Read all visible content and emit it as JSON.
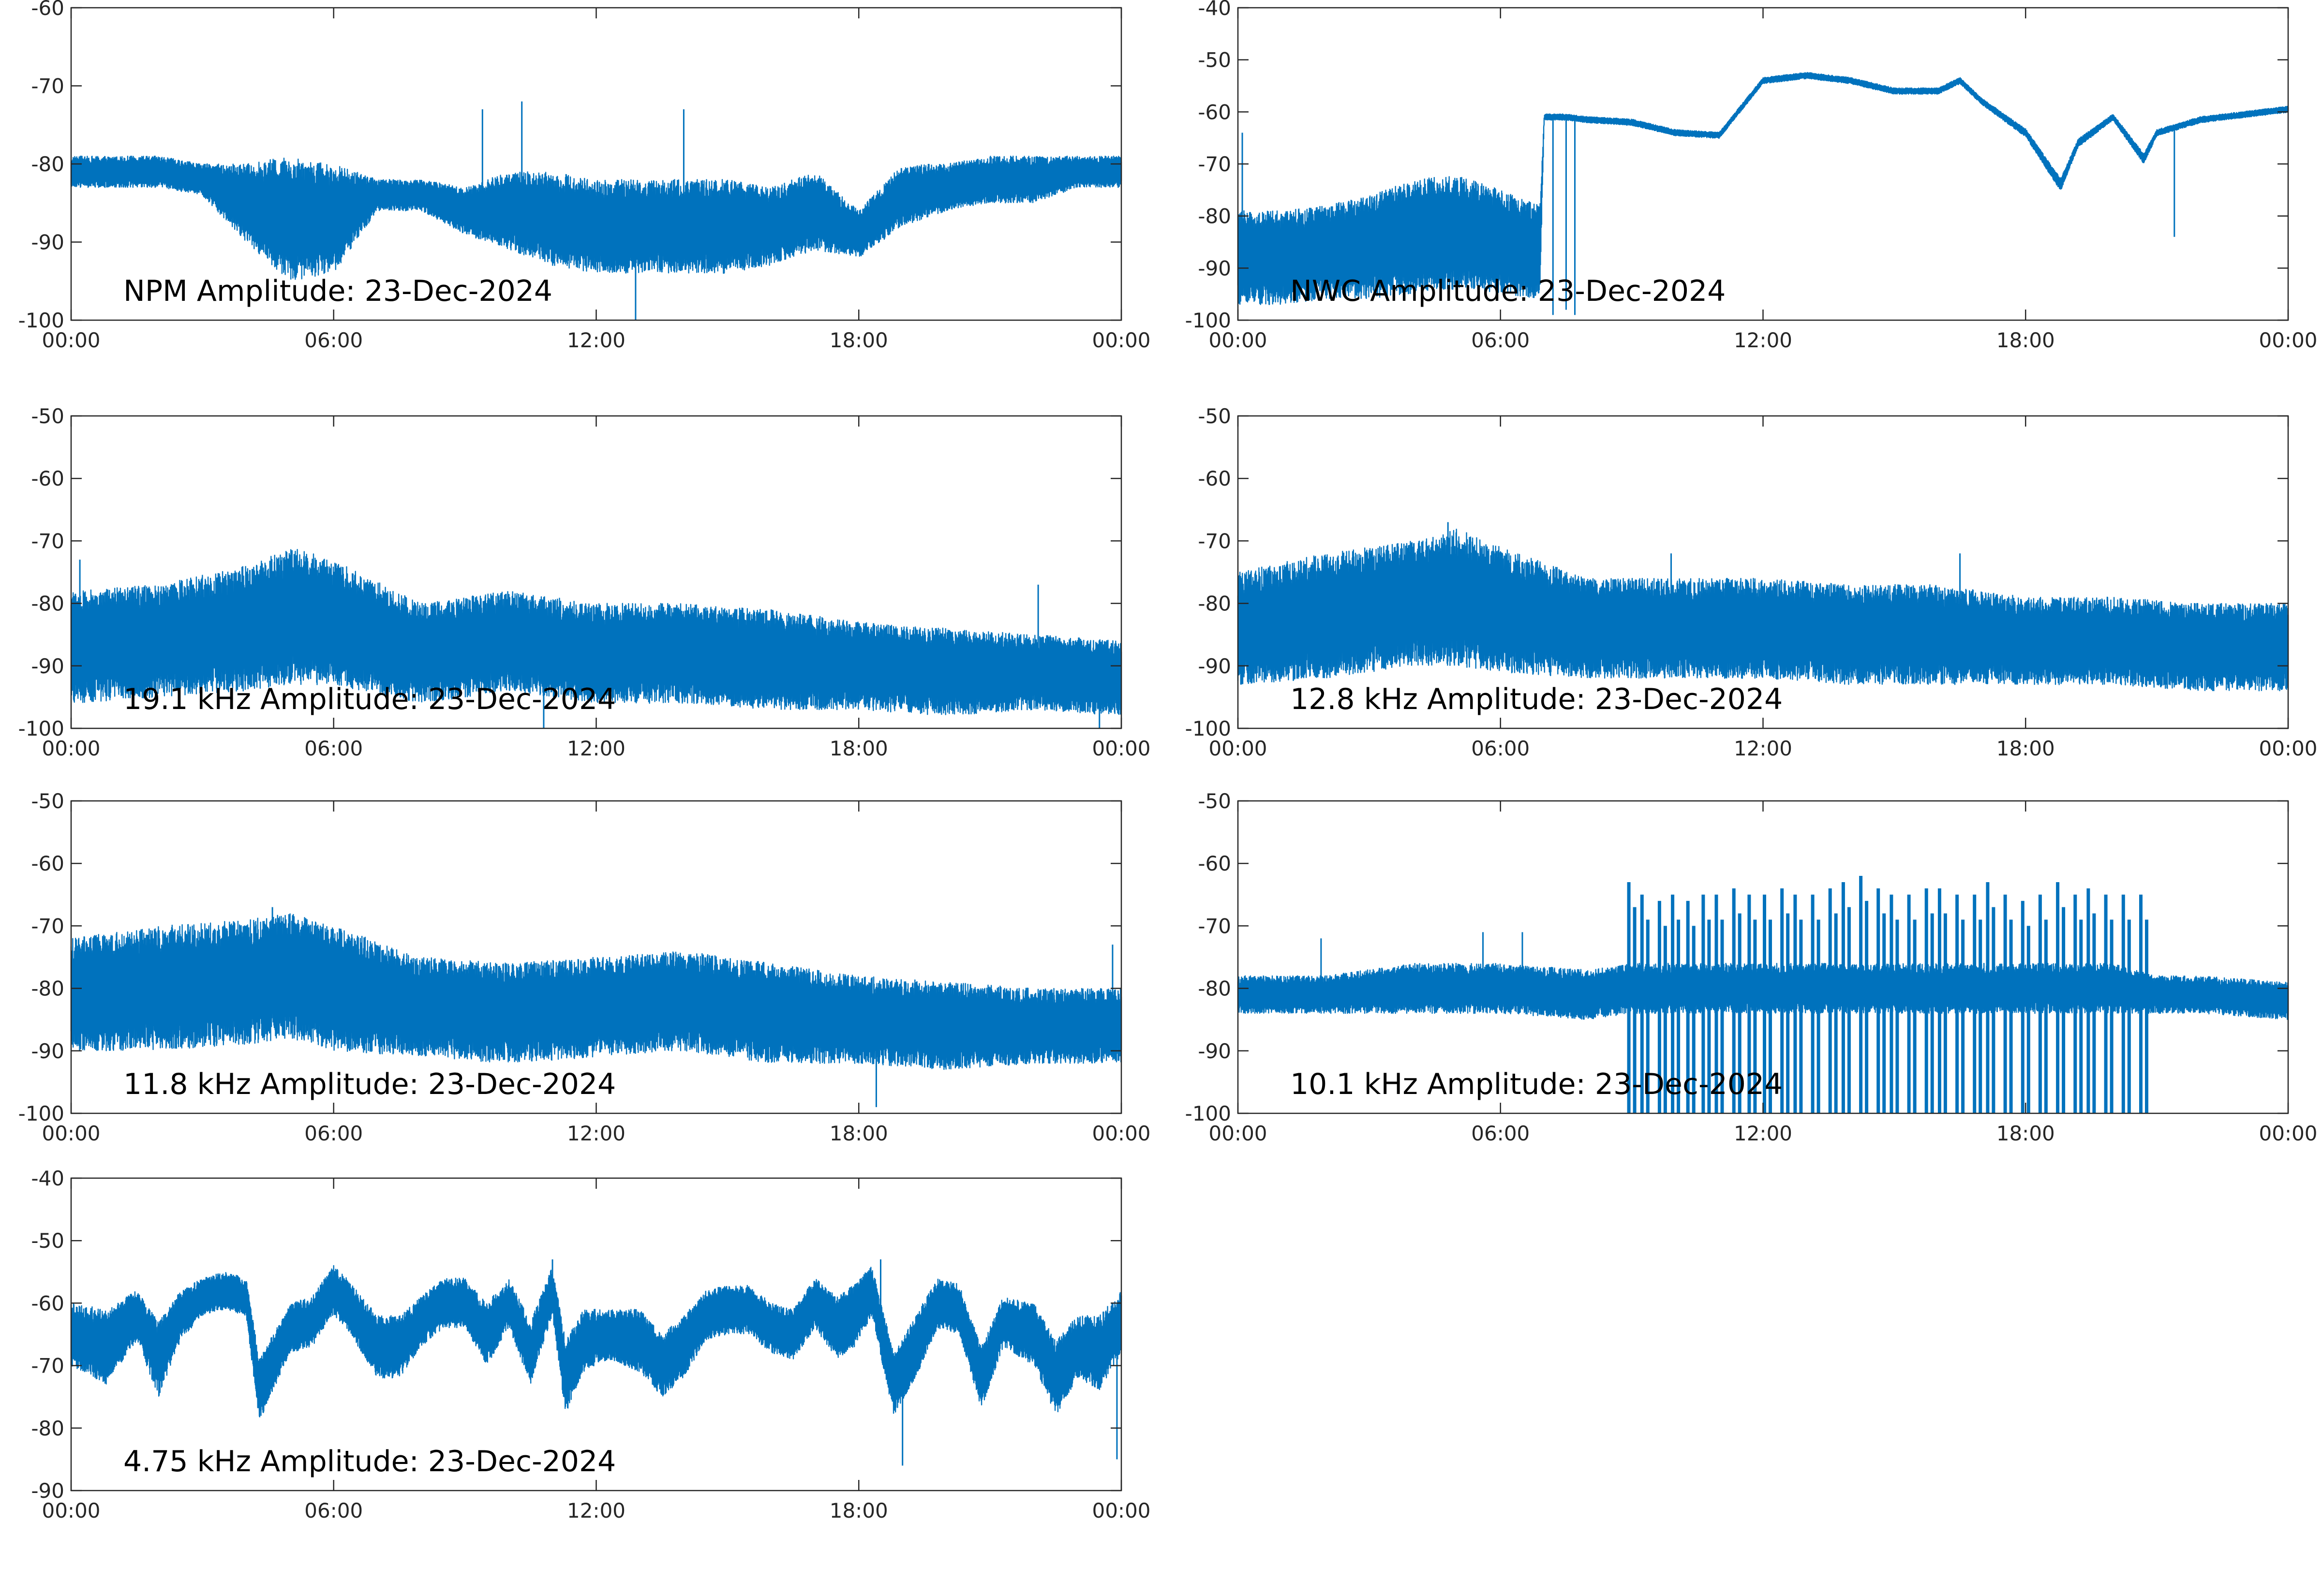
{
  "chart_data": [
    {
      "type": "line",
      "title": "NPM Amplitude: 23-Dec-2024",
      "xlabel": "",
      "ylabel": "",
      "x_ticks": [
        "00:00",
        "06:00",
        "12:00",
        "18:00",
        "00:00"
      ],
      "xlim_hours": [
        0,
        24
      ],
      "ylim": [
        -100,
        -60
      ],
      "y_ticks": [
        -60,
        -70,
        -80,
        -90,
        -100
      ],
      "series_color": "#0072BD",
      "grid": false,
      "envelope": {
        "hours": [
          0,
          1,
          2,
          3,
          4,
          5,
          6,
          7,
          8,
          9,
          10,
          11,
          12,
          13,
          14,
          15,
          16,
          17,
          18,
          19,
          20,
          21,
          22,
          23,
          24
        ],
        "center": [
          -81,
          -81,
          -81,
          -82,
          -85,
          -87,
          -87,
          -84,
          -84,
          -86,
          -86,
          -87,
          -88,
          -88,
          -88,
          -88,
          -88,
          -86,
          -89,
          -84,
          -83,
          -82,
          -82,
          -81,
          -81
        ],
        "spread": [
          2,
          2,
          2,
          2,
          5,
          8,
          7,
          2,
          2,
          3,
          5,
          6,
          6,
          6,
          6,
          6,
          5,
          5,
          3,
          4,
          3,
          3,
          3,
          2,
          2
        ]
      },
      "spikes": [
        {
          "hour": 9.4,
          "value": -73
        },
        {
          "hour": 10.3,
          "value": -72
        },
        {
          "hour": 14.0,
          "value": -73
        },
        {
          "hour": 12.9,
          "value": -100
        }
      ]
    },
    {
      "type": "line",
      "title": "NWC Amplitude: 23-Dec-2024",
      "xlabel": "",
      "ylabel": "",
      "x_ticks": [
        "00:00",
        "06:00",
        "12:00",
        "18:00",
        "00:00"
      ],
      "xlim_hours": [
        0,
        24
      ],
      "ylim": [
        -100,
        -40
      ],
      "y_ticks": [
        -40,
        -50,
        -60,
        -70,
        -80,
        -90,
        -100
      ],
      "series_color": "#0072BD",
      "grid": false,
      "envelope": {
        "hours": [
          0,
          0.1,
          1,
          2,
          3,
          4,
          5,
          6,
          6.9,
          7.0,
          7.5,
          8,
          9,
          10,
          11,
          12,
          13,
          14,
          15,
          16,
          16.5,
          17,
          18,
          18.8,
          19.2,
          20,
          20.7,
          21,
          22,
          23,
          24
        ],
        "center": [
          -88,
          -88,
          -88,
          -87,
          -86,
          -84,
          -83,
          -85,
          -87,
          -61,
          -61,
          -61.5,
          -62,
          -64,
          -64.5,
          -54,
          -53,
          -54,
          -56,
          -56,
          -54,
          -58,
          -64,
          -74,
          -66,
          -61,
          -69,
          -64,
          -61.5,
          -60.5,
          -59.5
        ],
        "spread": [
          9,
          9,
          9,
          9,
          10,
          11,
          11,
          10,
          9,
          0.6,
          0.6,
          0.6,
          0.6,
          0.6,
          0.6,
          0.6,
          0.6,
          0.6,
          0.6,
          0.6,
          0.6,
          0.6,
          0.8,
          1.2,
          0.8,
          0.6,
          1,
          0.6,
          0.6,
          0.6,
          0.6
        ]
      },
      "spikes": [
        {
          "hour": 0.1,
          "value": -64
        },
        {
          "hour": 7.2,
          "value": -99
        },
        {
          "hour": 7.5,
          "value": -98
        },
        {
          "hour": 7.7,
          "value": -99
        },
        {
          "hour": 21.4,
          "value": -84
        }
      ]
    },
    {
      "type": "line",
      "title": "19.1 kHz Amplitude: 23-Dec-2024",
      "xlabel": "",
      "ylabel": "",
      "x_ticks": [
        "00:00",
        "06:00",
        "12:00",
        "18:00",
        "00:00"
      ],
      "xlim_hours": [
        0,
        24
      ],
      "ylim": [
        -100,
        -50
      ],
      "y_ticks": [
        -50,
        -60,
        -70,
        -80,
        -90,
        -100
      ],
      "series_color": "#0072BD",
      "grid": false,
      "envelope": {
        "hours": [
          0,
          2,
          4,
          5,
          6,
          8,
          10,
          12,
          14,
          16,
          18,
          20,
          22,
          24
        ],
        "center": [
          -87,
          -86,
          -84,
          -82,
          -83,
          -88,
          -86,
          -88,
          -88,
          -89,
          -90,
          -91,
          -91,
          -92
        ],
        "spread": [
          9,
          9,
          10,
          11,
          10,
          8,
          8,
          8,
          8,
          8,
          7,
          7,
          6,
          6
        ]
      },
      "spikes": [
        {
          "hour": 0.2,
          "value": -73
        },
        {
          "hour": 22.1,
          "value": -77
        },
        {
          "hour": 10.8,
          "value": -100
        },
        {
          "hour": 23.5,
          "value": -100
        }
      ]
    },
    {
      "type": "line",
      "title": "12.8 kHz Amplitude: 23-Dec-2024",
      "xlabel": "",
      "ylabel": "",
      "x_ticks": [
        "00:00",
        "06:00",
        "12:00",
        "18:00",
        "00:00"
      ],
      "xlim_hours": [
        0,
        24
      ],
      "ylim": [
        -100,
        -50
      ],
      "y_ticks": [
        -50,
        -60,
        -70,
        -80,
        -90,
        -100
      ],
      "series_color": "#0072BD",
      "grid": false,
      "envelope": {
        "hours": [
          0,
          2,
          4,
          5,
          6,
          8,
          10,
          12,
          14,
          16,
          18,
          20,
          22,
          24
        ],
        "center": [
          -84,
          -82,
          -80,
          -79,
          -81,
          -84,
          -84,
          -84,
          -85,
          -85,
          -86,
          -86,
          -87,
          -87
        ],
        "spread": [
          9,
          10,
          10,
          11,
          10,
          8,
          8,
          8,
          8,
          8,
          7,
          7,
          7,
          7
        ]
      },
      "spikes": [
        {
          "hour": 4.8,
          "value": -67
        },
        {
          "hour": 9.9,
          "value": -72
        },
        {
          "hour": 16.5,
          "value": -72
        }
      ]
    },
    {
      "type": "line",
      "title": "11.8 kHz Amplitude: 23-Dec-2024",
      "xlabel": "",
      "ylabel": "",
      "x_ticks": [
        "00:00",
        "06:00",
        "12:00",
        "18:00",
        "00:00"
      ],
      "xlim_hours": [
        0,
        24
      ],
      "ylim": [
        -100,
        -50
      ],
      "y_ticks": [
        -50,
        -60,
        -70,
        -80,
        -90,
        -100
      ],
      "series_color": "#0072BD",
      "grid": false,
      "envelope": {
        "hours": [
          0,
          2,
          4,
          5,
          6,
          8,
          10,
          12,
          14,
          16,
          18,
          20,
          22,
          24
        ],
        "center": [
          -81,
          -80,
          -79,
          -78,
          -80,
          -83,
          -84,
          -83,
          -82,
          -84,
          -85,
          -86,
          -86,
          -86
        ],
        "spread": [
          9,
          10,
          10,
          10,
          10,
          8,
          8,
          8,
          8,
          8,
          7,
          7,
          6,
          6
        ]
      },
      "spikes": [
        {
          "hour": 4.6,
          "value": -67
        },
        {
          "hour": 18.4,
          "value": -99
        },
        {
          "hour": 23.8,
          "value": -73
        }
      ]
    },
    {
      "type": "line",
      "title": "10.1 kHz Amplitude: 23-Dec-2024",
      "xlabel": "",
      "ylabel": "",
      "x_ticks": [
        "00:00",
        "06:00",
        "12:00",
        "18:00",
        "00:00"
      ],
      "xlim_hours": [
        0,
        24
      ],
      "ylim": [
        -100,
        -50
      ],
      "y_ticks": [
        -50,
        -60,
        -70,
        -80,
        -90,
        -100
      ],
      "series_color": "#0072BD",
      "grid": false,
      "envelope": {
        "hours": [
          0,
          2,
          4,
          6,
          8,
          9,
          10,
          12,
          14,
          16,
          18,
          20,
          21,
          22,
          24
        ],
        "center": [
          -81,
          -81,
          -80,
          -80,
          -81,
          -80,
          -80,
          -80,
          -80,
          -80,
          -80,
          -80,
          -81,
          -81,
          -82
        ],
        "spread": [
          3,
          3,
          4,
          4,
          4,
          4,
          4,
          4,
          4,
          4,
          4,
          4,
          3,
          3,
          3
        ]
      },
      "bursts": {
        "hours": [
          9.0,
          9.3,
          9.7,
          10.0,
          10.35,
          10.7,
          11.0,
          11.4,
          11.75,
          12.1,
          12.5,
          12.8,
          13.2,
          13.6,
          13.9,
          14.3,
          14.7,
          15.0,
          15.4,
          15.8,
          16.1,
          16.5,
          16.9,
          17.2,
          17.6,
          18.0,
          18.4,
          18.8,
          19.2,
          19.5,
          19.9,
          20.3,
          20.7
        ],
        "high": [
          -63,
          -65,
          -66,
          -65,
          -66,
          -65,
          -65,
          -64,
          -65,
          -65,
          -64,
          -65,
          -65,
          -64,
          -63,
          -62,
          -64,
          -65,
          -65,
          -64,
          -64,
          -65,
          -65,
          -63,
          -65,
          -66,
          -65,
          -63,
          -65,
          -64,
          -65,
          -65,
          -65
        ],
        "low": -100
      },
      "spikes": [
        {
          "hour": 1.9,
          "value": -72
        },
        {
          "hour": 5.6,
          "value": -71
        },
        {
          "hour": 6.5,
          "value": -71
        }
      ]
    },
    {
      "type": "line",
      "title": "4.75 kHz Amplitude: 23-Dec-2024",
      "xlabel": "",
      "ylabel": "",
      "x_ticks": [
        "00:00",
        "06:00",
        "12:00",
        "18:00",
        "00:00"
      ],
      "xlim_hours": [
        0,
        24
      ],
      "ylim": [
        -90,
        -40
      ],
      "y_ticks": [
        -40,
        -50,
        -60,
        -70,
        -80,
        -90
      ],
      "series_color": "#0072BD",
      "grid": false,
      "envelope": {
        "hours": [
          0,
          0.8,
          1.5,
          2.0,
          2.5,
          3.0,
          3.5,
          4.0,
          4.3,
          5.0,
          5.5,
          6.0,
          6.3,
          7.0,
          7.5,
          8.0,
          8.5,
          9.0,
          9.5,
          10.0,
          10.5,
          11.0,
          11.3,
          11.7,
          12.3,
          13.0,
          13.5,
          14.0,
          14.5,
          15.0,
          15.5,
          16.0,
          16.5,
          17.0,
          17.5,
          17.9,
          18.3,
          18.8,
          19.3,
          19.8,
          20.3,
          20.8,
          21.3,
          22.0,
          22.5,
          23.0,
          23.5,
          24.0
        ],
        "center": [
          -65,
          -67,
          -62,
          -69,
          -62,
          -59,
          -58,
          -59,
          -74,
          -64,
          -63,
          -58,
          -60,
          -67,
          -67,
          -63,
          -60,
          -60,
          -65,
          -60,
          -68,
          -58,
          -72,
          -66,
          -65,
          -66,
          -70,
          -67,
          -62,
          -61,
          -61,
          -64,
          -65,
          -60,
          -64,
          -62,
          -58,
          -73,
          -67,
          -60,
          -61,
          -72,
          -63,
          -65,
          -72,
          -67,
          -68,
          -63
        ],
        "spread": [
          5,
          6,
          4,
          6,
          4,
          3,
          3,
          3,
          5,
          4,
          4,
          4,
          4,
          5,
          5,
          4,
          4,
          4,
          5,
          4,
          5,
          4,
          6,
          5,
          4,
          5,
          5,
          5,
          4,
          4,
          4,
          4,
          4,
          4,
          5,
          5,
          4,
          5,
          5,
          4,
          4,
          5,
          4,
          5,
          6,
          5,
          6,
          5
        ]
      },
      "spikes": [
        {
          "hour": 11.0,
          "value": -53
        },
        {
          "hour": 18.5,
          "value": -53
        },
        {
          "hour": 19.0,
          "value": -86
        },
        {
          "hour": 23.9,
          "value": -85
        }
      ]
    }
  ]
}
